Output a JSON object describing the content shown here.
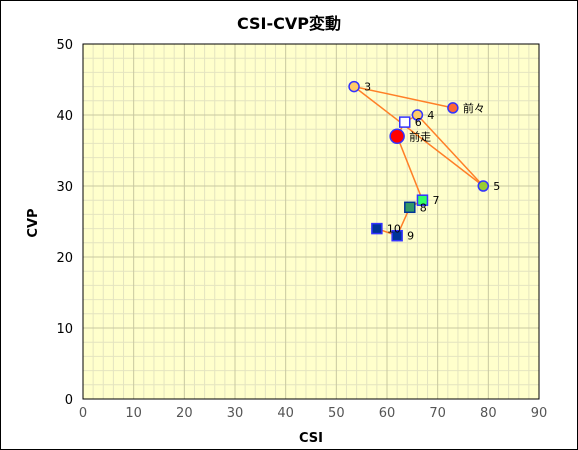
{
  "chart_data": {
    "type": "scatter",
    "title": "CSI-CVP変動",
    "xlabel": "CSI",
    "ylabel": "CVP",
    "xlim": [
      0,
      90
    ],
    "ylim": [
      0,
      50
    ],
    "x_ticks": [
      0,
      10,
      20,
      30,
      40,
      50,
      60,
      70,
      80,
      90
    ],
    "y_ticks": [
      0,
      10,
      20,
      30,
      40,
      50
    ],
    "grid": true,
    "legend": "none",
    "colors": {
      "plot_bg": "#ffffcc",
      "grid_major": "#c8c8a0",
      "grid_minor": "#e4e4c0",
      "line": "#ff7f27"
    },
    "path_order": [
      "前々",
      "3",
      "5",
      "4",
      "6",
      "前走",
      "7",
      "8",
      "9",
      "10"
    ],
    "points": [
      {
        "label": "前々",
        "x": 73,
        "y": 41,
        "shape": "circle",
        "fill": "#ff6633",
        "stroke": "#3333ff"
      },
      {
        "label": "3",
        "x": 53.5,
        "y": 44,
        "shape": "circle",
        "fill": "#ffcc66",
        "stroke": "#3333ff"
      },
      {
        "label": "5",
        "x": 79,
        "y": 30,
        "shape": "circle",
        "fill": "#99cc33",
        "stroke": "#3333ff"
      },
      {
        "label": "4",
        "x": 66,
        "y": 40,
        "shape": "circle",
        "fill": "#ffcc66",
        "stroke": "#3333ff"
      },
      {
        "label": "6",
        "x": 63.5,
        "y": 39,
        "shape": "square",
        "fill": "#ffffff",
        "stroke": "#3333ff"
      },
      {
        "label": "前走",
        "x": 62,
        "y": 37,
        "shape": "circle-large",
        "fill": "#ff0000",
        "stroke": "#3333ff"
      },
      {
        "label": "7",
        "x": 67,
        "y": 28,
        "shape": "square",
        "fill": "#33ff66",
        "stroke": "#3333ff"
      },
      {
        "label": "8",
        "x": 64.5,
        "y": 27,
        "shape": "square",
        "fill": "#339966",
        "stroke": "#003399"
      },
      {
        "label": "9",
        "x": 62,
        "y": 23,
        "shape": "square",
        "fill": "#003399",
        "stroke": "#3333ff"
      },
      {
        "label": "10",
        "x": 58,
        "y": 24,
        "shape": "square",
        "fill": "#003399",
        "stroke": "#3333ff"
      }
    ]
  }
}
